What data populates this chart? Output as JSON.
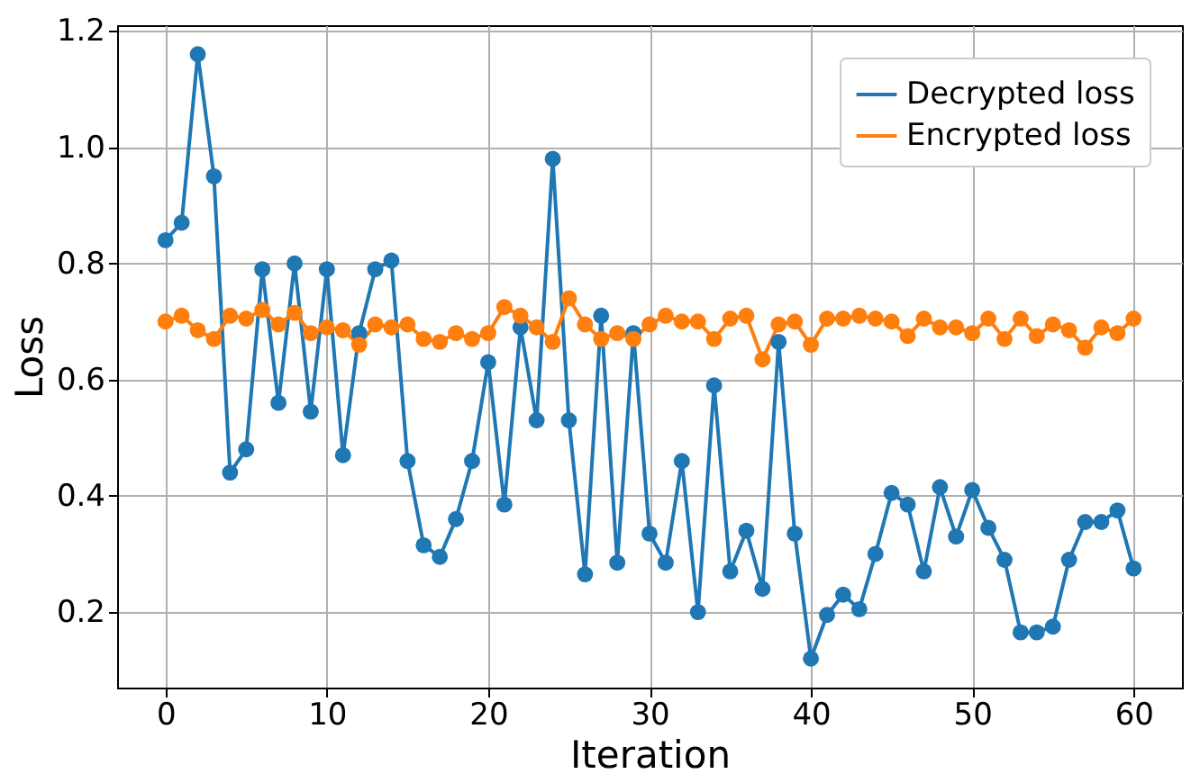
{
  "chart_data": {
    "type": "line",
    "xlabel": "Iteration",
    "ylabel": "Loss",
    "xlim": [
      -3,
      63
    ],
    "xticks": [
      0,
      10,
      20,
      30,
      40,
      50,
      60
    ],
    "ylim": [
      0.07,
      1.21
    ],
    "yticks": [
      0.2,
      0.4,
      0.6,
      0.8,
      {
        "value": 1,
        "label": "1.0"
      },
      1.2
    ],
    "x": [
      0,
      1,
      2,
      3,
      4,
      5,
      6,
      7,
      8,
      9,
      10,
      11,
      12,
      13,
      14,
      15,
      16,
      17,
      18,
      19,
      20,
      21,
      22,
      23,
      24,
      25,
      26,
      27,
      28,
      29,
      30,
      31,
      32,
      33,
      34,
      35,
      36,
      37,
      38,
      39,
      40,
      41,
      42,
      43,
      44,
      45,
      46,
      47,
      48,
      49,
      50,
      51,
      52,
      53,
      54,
      55,
      56,
      57,
      58,
      59,
      60
    ],
    "series": [
      {
        "name": "Decrypted loss",
        "color": "#1f77b4",
        "values": [
          0.84,
          0.87,
          1.16,
          0.95,
          0.44,
          0.48,
          0.79,
          0.56,
          0.8,
          0.545,
          0.79,
          0.47,
          0.68,
          0.79,
          0.805,
          0.46,
          0.315,
          0.295,
          0.36,
          0.46,
          0.63,
          0.385,
          0.69,
          0.53,
          0.98,
          0.53,
          0.265,
          0.71,
          0.285,
          0.68,
          0.335,
          0.285,
          0.46,
          0.2,
          0.59,
          0.27,
          0.34,
          0.24,
          0.665,
          0.335,
          0.12,
          0.195,
          0.23,
          0.205,
          0.3,
          0.405,
          0.385,
          0.27,
          0.415,
          0.33,
          0.41,
          0.345,
          0.29,
          0.165,
          0.165,
          0.175,
          0.29,
          0.355,
          0.355,
          0.375,
          0.275
        ]
      },
      {
        "name": "Encrypted loss",
        "color": "#ff7f0e",
        "values": [
          0.7,
          0.71,
          0.685,
          0.67,
          0.71,
          0.705,
          0.72,
          0.695,
          0.715,
          0.68,
          0.69,
          0.685,
          0.66,
          0.695,
          0.69,
          0.695,
          0.67,
          0.665,
          0.68,
          0.67,
          0.68,
          0.725,
          0.71,
          0.69,
          0.665,
          0.74,
          0.695,
          0.67,
          0.68,
          0.67,
          0.695,
          0.71,
          0.7,
          0.7,
          0.67,
          0.705,
          0.71,
          0.635,
          0.695,
          0.7,
          0.66,
          0.705,
          0.705,
          0.71,
          0.705,
          0.7,
          0.675,
          0.705,
          0.69,
          0.69,
          0.68,
          0.705,
          0.67,
          0.705,
          0.675,
          0.695,
          0.685,
          0.655,
          0.69,
          0.68,
          0.705
        ]
      }
    ],
    "grid": true,
    "legend": "top right",
    "marker": "circle",
    "line_style": "solid"
  }
}
